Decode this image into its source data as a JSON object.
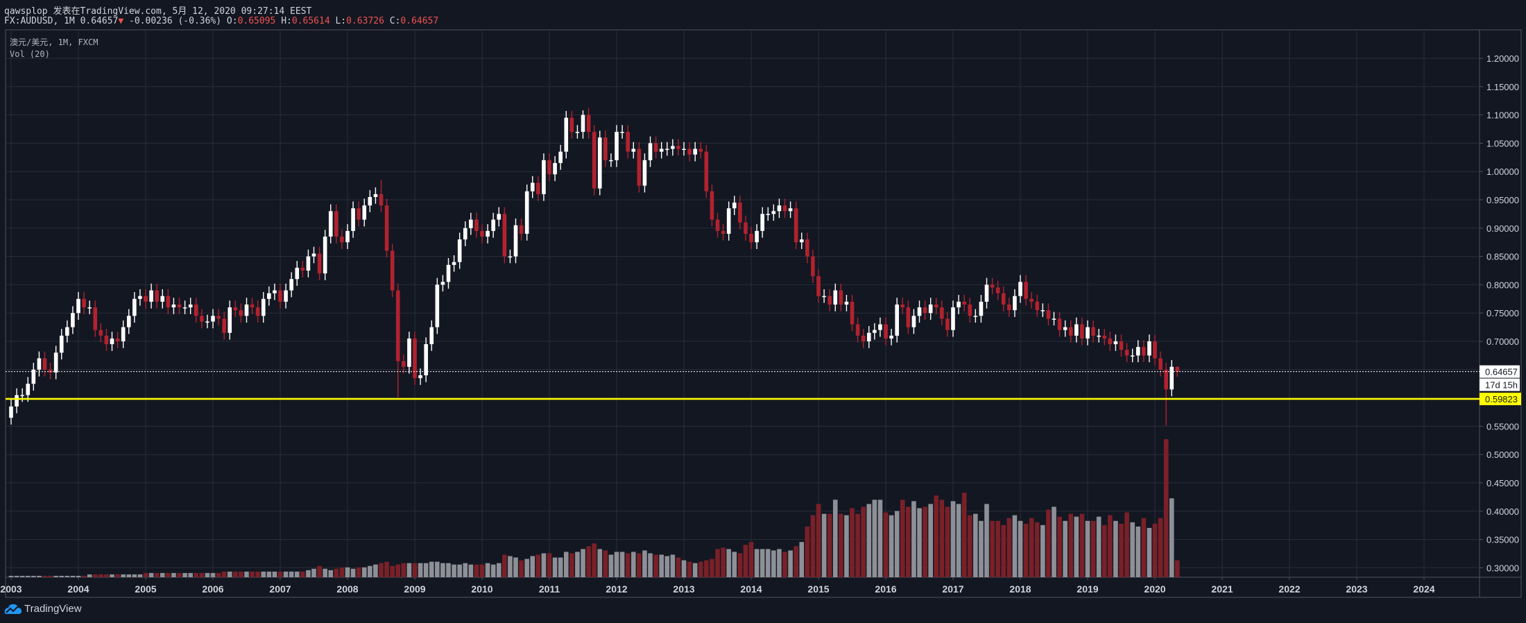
{
  "header": {
    "line1": "qawsplop 发表在TradingView.com, 5月 12, 2020 09:27:14 EEST",
    "symbol": "FX:AUDUSD, 1M",
    "last": "0.64657",
    "change": "-0.00236 (-0.36%)",
    "o_label": "O:",
    "o": "0.65095",
    "h_label": "H:",
    "h": "0.65614",
    "l_label": "L:",
    "l": "0.63726",
    "c_label": "C:",
    "c": "0.64657"
  },
  "legend": {
    "title": "澳元/美元, 1M, FXCM",
    "volume": "Vol (20)"
  },
  "price_axis": {
    "ticks": [
      "1.20000",
      "1.15000",
      "1.10000",
      "1.05000",
      "1.00000",
      "0.95000",
      "0.90000",
      "0.85000",
      "0.80000",
      "0.75000",
      "0.70000",
      "0.55000",
      "0.50000",
      "0.45000",
      "0.40000",
      "0.35000",
      "0.30000"
    ],
    "last_price_label": "0.64657",
    "countdown": "17d 15h",
    "hline_label": "0.59823"
  },
  "time_axis": {
    "years": [
      "2003",
      "2004",
      "2005",
      "2006",
      "2007",
      "2008",
      "2009",
      "2010",
      "2011",
      "2012",
      "2013",
      "2014",
      "2015",
      "2016",
      "2017",
      "2018",
      "2019",
      "2020",
      "2021",
      "2022",
      "2023",
      "2024"
    ]
  },
  "branding": "TradingView",
  "colors": {
    "bg": "#131722",
    "grid": "#2a2e39",
    "up": "#ffffff",
    "down": "#b2222f",
    "vol_up": "#8e9097",
    "vol_down": "#7a2028",
    "hline": "#ffff00"
  },
  "chart_data": {
    "type": "candlestick",
    "symbol": "AUDUSD",
    "interval": "1M",
    "start": "2003-01",
    "last_price": 0.64657,
    "horizontal_line": 0.59823,
    "price_range": [
      0.28,
      1.23
    ],
    "closes": [
      0.585,
      0.605,
      0.605,
      0.625,
      0.65,
      0.67,
      0.65,
      0.645,
      0.68,
      0.71,
      0.725,
      0.75,
      0.775,
      0.76,
      0.76,
      0.72,
      0.71,
      0.695,
      0.705,
      0.7,
      0.725,
      0.745,
      0.775,
      0.78,
      0.77,
      0.79,
      0.77,
      0.78,
      0.76,
      0.765,
      0.76,
      0.76,
      0.765,
      0.745,
      0.735,
      0.735,
      0.745,
      0.74,
      0.715,
      0.76,
      0.755,
      0.745,
      0.765,
      0.76,
      0.745,
      0.775,
      0.785,
      0.79,
      0.77,
      0.79,
      0.81,
      0.83,
      0.825,
      0.85,
      0.855,
      0.82,
      0.885,
      0.93,
      0.885,
      0.875,
      0.895,
      0.935,
      0.915,
      0.94,
      0.955,
      0.96,
      0.94,
      0.86,
      0.79,
      0.665,
      0.655,
      0.705,
      0.635,
      0.64,
      0.695,
      0.725,
      0.8,
      0.805,
      0.835,
      0.84,
      0.88,
      0.9,
      0.915,
      0.895,
      0.885,
      0.895,
      0.915,
      0.925,
      0.85,
      0.85,
      0.905,
      0.89,
      0.965,
      0.98,
      0.96,
      1.02,
      0.995,
      1.015,
      1.035,
      1.095,
      1.07,
      1.07,
      1.1,
      1.07,
      0.97,
      1.06,
      1.02,
      1.02,
      1.07,
      1.07,
      1.035,
      1.04,
      0.975,
      1.02,
      1.05,
      1.035,
      1.04,
      1.04,
      1.045,
      1.04,
      1.04,
      1.03,
      1.04,
      1.035,
      0.965,
      0.915,
      0.895,
      0.89,
      0.935,
      0.945,
      0.91,
      0.89,
      0.875,
      0.895,
      0.925,
      0.925,
      0.93,
      0.94,
      0.93,
      0.935,
      0.875,
      0.88,
      0.85,
      0.815,
      0.78,
      0.78,
      0.765,
      0.79,
      0.765,
      0.77,
      0.73,
      0.71,
      0.7,
      0.715,
      0.72,
      0.73,
      0.705,
      0.71,
      0.765,
      0.76,
      0.725,
      0.745,
      0.76,
      0.75,
      0.765,
      0.76,
      0.74,
      0.72,
      0.76,
      0.77,
      0.765,
      0.745,
      0.745,
      0.77,
      0.8,
      0.795,
      0.785,
      0.765,
      0.755,
      0.78,
      0.805,
      0.775,
      0.77,
      0.755,
      0.755,
      0.74,
      0.74,
      0.72,
      0.725,
      0.71,
      0.73,
      0.705,
      0.725,
      0.71,
      0.71,
      0.705,
      0.695,
      0.7,
      0.685,
      0.675,
      0.675,
      0.69,
      0.675,
      0.7,
      0.67,
      0.65,
      0.615,
      0.655,
      0.64657
    ],
    "first_open": 0.565,
    "wick_overrides": [
      {
        "index": 66,
        "high": 0.985
      },
      {
        "index": 69,
        "low": 0.601
      },
      {
        "index": 102,
        "high": 1.108
      },
      {
        "index": 206,
        "low": 0.551
      },
      {
        "index": 208,
        "high": 0.65614,
        "low": 0.63726
      }
    ],
    "volume_relative": [
      1,
      1,
      1,
      1,
      1,
      1,
      1,
      1,
      1,
      1,
      1,
      1,
      1,
      1,
      2,
      2,
      2,
      2,
      2,
      2,
      2,
      2,
      2,
      2,
      3,
      3,
      3,
      3,
      3,
      3,
      3,
      3,
      3,
      3,
      3,
      3,
      3,
      3,
      4,
      4,
      4,
      4,
      4,
      4,
      4,
      4,
      4,
      4,
      4,
      4,
      4,
      4,
      4,
      5,
      6,
      8,
      6,
      5,
      6,
      7,
      7,
      6,
      7,
      7,
      8,
      9,
      10,
      11,
      8,
      9,
      10,
      10,
      10,
      10,
      10,
      11,
      11,
      10,
      10,
      9,
      9,
      10,
      9,
      9,
      9,
      10,
      9,
      10,
      16,
      15,
      14,
      12,
      13,
      15,
      16,
      17,
      17,
      14,
      14,
      18,
      17,
      18,
      20,
      22,
      24,
      20,
      19,
      16,
      18,
      18,
      17,
      18,
      17,
      19,
      17,
      16,
      16,
      15,
      16,
      14,
      12,
      11,
      10,
      11,
      12,
      13,
      20,
      21,
      20,
      18,
      17,
      23,
      25,
      20,
      20,
      20,
      19,
      20,
      18,
      19,
      22,
      25,
      36,
      44,
      52,
      45,
      45,
      55,
      45,
      44,
      49,
      45,
      50,
      52,
      55,
      55,
      46,
      44,
      47,
      55,
      50,
      54,
      49,
      50,
      52,
      58,
      55,
      50,
      54,
      52,
      60,
      44,
      45,
      40,
      52,
      40,
      40,
      37,
      42,
      44,
      40,
      38,
      42,
      39,
      37,
      48,
      50,
      43,
      40,
      45,
      43,
      45,
      40,
      40,
      43,
      37,
      44,
      40,
      38,
      46,
      39,
      36,
      42,
      35,
      38,
      42,
      98,
      56,
      12
    ]
  }
}
